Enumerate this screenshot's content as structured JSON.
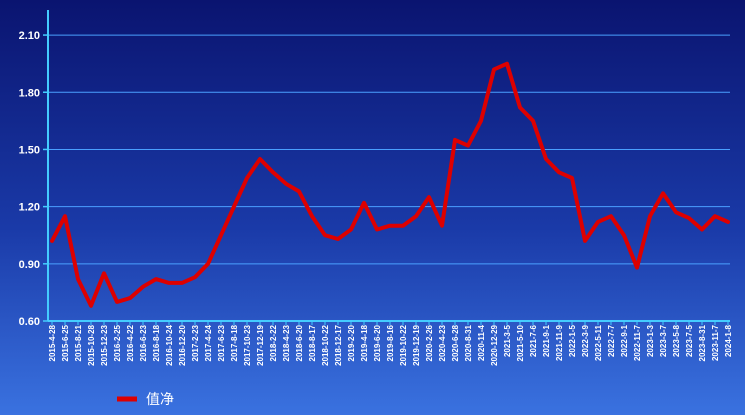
{
  "chart_data": {
    "type": "line",
    "title": "",
    "xlabel": "",
    "ylabel": "",
    "ylim": [
      0.6,
      2.2
    ],
    "yticks": [
      "0.60",
      "0.90",
      "1.20",
      "1.50",
      "1.80",
      "2.10"
    ],
    "ytick_values": [
      0.6,
      0.9,
      1.2,
      1.5,
      1.8,
      2.1
    ],
    "grid": true,
    "legend_position": "bottom-left",
    "x": [
      "2015-4-28",
      "2015-6-25",
      "2015-8-21",
      "2015-10-28",
      "2015-12-23",
      "2016-2-25",
      "2016-4-22",
      "2016-6-23",
      "2016-8-18",
      "2016-10-24",
      "2016-12-20",
      "2017-2-23",
      "2017-4-24",
      "2017-6-23",
      "2017-8-18",
      "2017-10-23",
      "2017-12-19",
      "2018-2-22",
      "2018-4-23",
      "2018-6-20",
      "2018-8-17",
      "2018-10-22",
      "2018-12-17",
      "2019-2-20",
      "2019-4-18",
      "2019-6-20",
      "2019-8-16",
      "2019-10-22",
      "2019-12-19",
      "2020-2-26",
      "2020-4-23",
      "2020-6-28",
      "2020-8-31",
      "2020-11-4",
      "2020-12-29",
      "2021-3-5",
      "2021-5-10",
      "2021-7-6",
      "2021-9-1",
      "2021-11-9",
      "2022-1-5",
      "2022-3-9",
      "2022-5-11",
      "2022-7-7",
      "2022-9-1",
      "2022-11-7",
      "2023-1-3",
      "2023-3-7",
      "2023-5-8",
      "2023-7-5",
      "2023-8-31",
      "2023-11-7",
      "2024-1-8"
    ],
    "series": [
      {
        "name": "值净",
        "color": "#dd0000",
        "values": [
          1.02,
          1.15,
          0.82,
          0.68,
          0.85,
          0.7,
          0.72,
          0.78,
          0.82,
          0.8,
          0.8,
          0.83,
          0.9,
          1.05,
          1.2,
          1.35,
          1.45,
          1.38,
          1.32,
          1.28,
          1.15,
          1.05,
          1.03,
          1.08,
          1.22,
          1.08,
          1.1,
          1.1,
          1.15,
          1.25,
          1.1,
          1.55,
          1.52,
          1.65,
          1.92,
          1.95,
          1.72,
          1.65,
          1.45,
          1.38,
          1.35,
          1.02,
          1.12,
          1.15,
          1.05,
          0.88,
          1.15,
          1.27,
          1.17,
          1.14,
          1.08,
          1.15,
          1.12
        ]
      }
    ]
  }
}
